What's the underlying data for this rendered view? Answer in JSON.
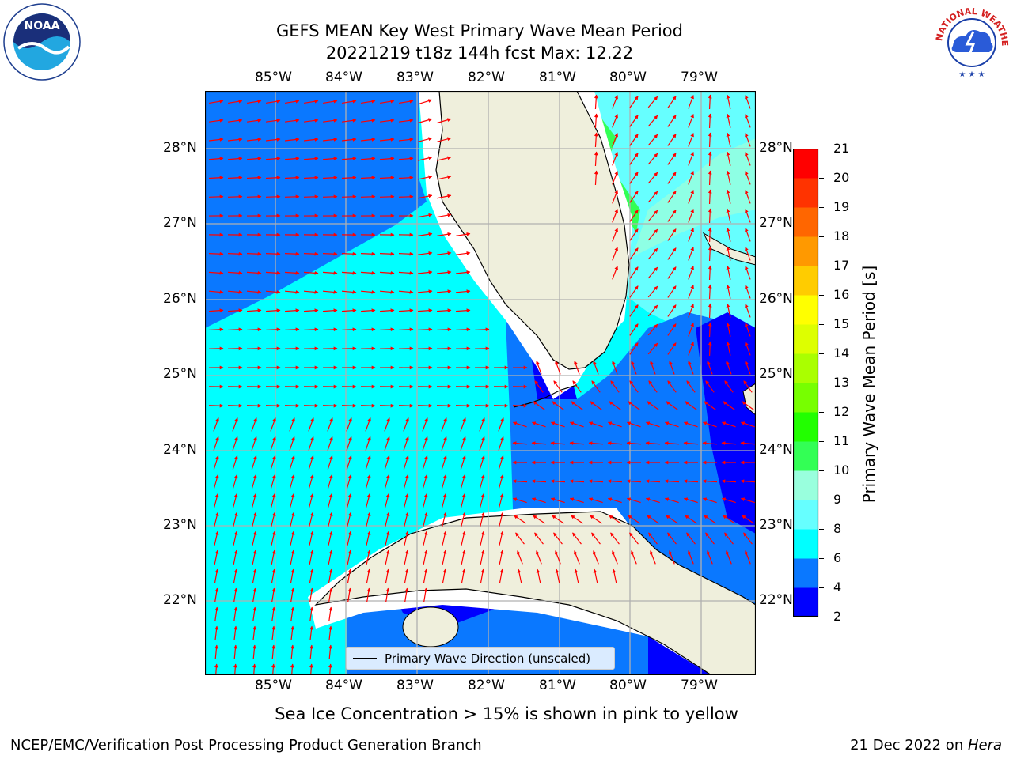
{
  "header": {
    "title_line1": "GEFS MEAN Key West Primary Wave Mean Period",
    "title_line2": "20221219 t18z 144h fcst   Max: 12.22"
  },
  "logos": {
    "noaa_text": "NOAA",
    "nws_text": "NATIONAL WEATHER SERVICE"
  },
  "map": {
    "lon_labels": [
      "85°W",
      "84°W",
      "83°W",
      "82°W",
      "81°W",
      "80°W",
      "79°W"
    ],
    "lat_labels": [
      "28°N",
      "27°N",
      "26°N",
      "25°N",
      "24°N",
      "23°N",
      "22°N"
    ],
    "arrow_color": "#ff0000",
    "legend_text": "Primary Wave Direction (unscaled)"
  },
  "colorbar": {
    "title": "Primary Wave Mean Period [s]",
    "tick_labels": [
      "2",
      "4",
      "6",
      "8",
      "9",
      "10",
      "11",
      "12",
      "13",
      "14",
      "15",
      "16",
      "17",
      "18",
      "19",
      "20",
      "21"
    ],
    "colors": [
      "#0000ff",
      "#0a78ff",
      "#00ffff",
      "#66ffff",
      "#99ffdd",
      "#33ff55",
      "#22ff00",
      "#77ff00",
      "#aaff00",
      "#ddff00",
      "#ffff00",
      "#ffcc00",
      "#ff9900",
      "#ff6600",
      "#ff3300",
      "#ff0000"
    ]
  },
  "footer": {
    "sea_ice_note": "Sea Ice Concentration > 15% is shown in pink to yellow",
    "branch": "NCEP/EMC/Verification Post Processing Product Generation Branch",
    "date_prefix": "21 Dec 2022 on ",
    "machine": "Hera"
  }
}
